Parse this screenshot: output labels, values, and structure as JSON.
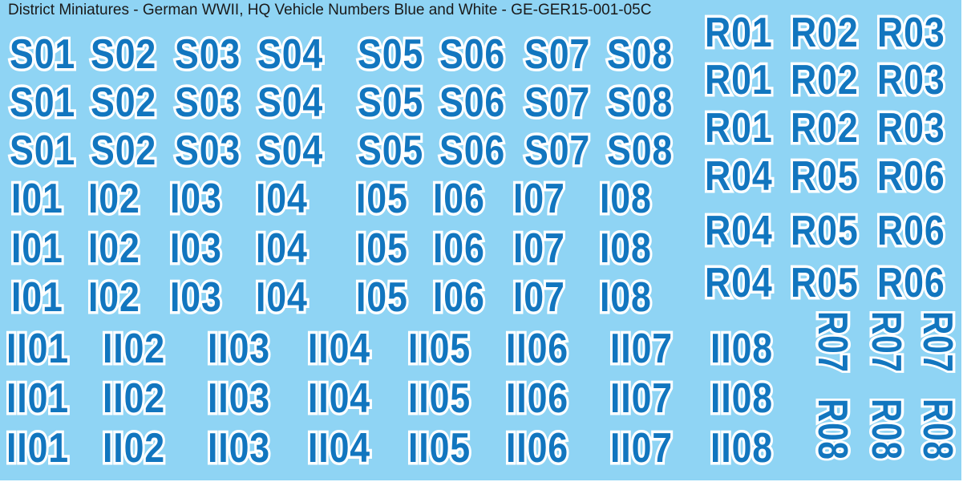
{
  "title": "District Miniatures - German WWII, HQ Vehicle Numbers Blue and White - GE-GER15-001-05C",
  "colors": {
    "background": "#8fd4f4",
    "numeral": "#1276bf",
    "outline": "#ffffff",
    "title": "#1a1a1a"
  },
  "s_rows": [
    [
      "S01",
      "S02",
      "S03",
      "S04",
      "S05",
      "S06",
      "S07",
      "S08"
    ],
    [
      "S01",
      "S02",
      "S03",
      "S04",
      "S05",
      "S06",
      "S07",
      "S08"
    ],
    [
      "S01",
      "S02",
      "S03",
      "S04",
      "S05",
      "S06",
      "S07",
      "S08"
    ]
  ],
  "i_rows": [
    [
      "I01",
      "I02",
      "I03",
      "I04",
      "I05",
      "I06",
      "I07",
      "I08"
    ],
    [
      "I01",
      "I02",
      "I03",
      "I04",
      "I05",
      "I06",
      "I07",
      "I08"
    ],
    [
      "I01",
      "I02",
      "I03",
      "I04",
      "I05",
      "I06",
      "I07",
      "I08"
    ]
  ],
  "ii_rows": [
    [
      "II01",
      "II02",
      "II03",
      "II04",
      "II05",
      "II06",
      "II07",
      "II08"
    ],
    [
      "II01",
      "II02",
      "II03",
      "II04",
      "II05",
      "II06",
      "II07",
      "II08"
    ],
    [
      "II01",
      "II02",
      "II03",
      "II04",
      "II05",
      "II06",
      "II07",
      "II08"
    ]
  ],
  "r_rows": [
    [
      "R01",
      "R02",
      "R03"
    ],
    [
      "R01",
      "R02",
      "R03"
    ],
    [
      "R01",
      "R02",
      "R03"
    ],
    [
      "R04",
      "R05",
      "R06"
    ],
    [
      "R04",
      "R05",
      "R06"
    ],
    [
      "R04",
      "R05",
      "R06"
    ]
  ],
  "r_vertical": [
    [
      "R07",
      "R07",
      "R07"
    ],
    [
      "R08",
      "R08",
      "R08"
    ]
  ]
}
